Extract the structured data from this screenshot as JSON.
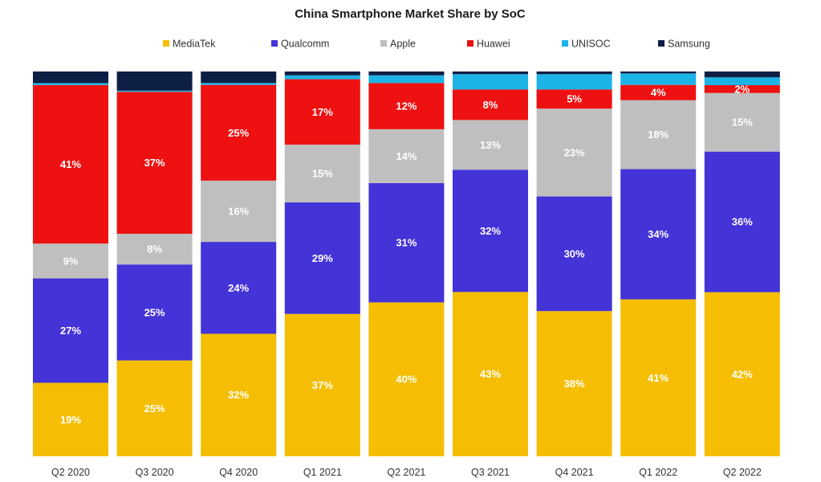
{
  "chart_data": {
    "type": "bar",
    "stacked": true,
    "normalized_percent": true,
    "title": "China Smartphone Market Share by SoC",
    "categories": [
      "Q2 2020",
      "Q3 2020",
      "Q4 2020",
      "Q1 2021",
      "Q2 2021",
      "Q3 2021",
      "Q4 2021",
      "Q1 2022",
      "Q2 2022"
    ],
    "legend_position": "top",
    "grid": false,
    "ylim": [
      0,
      100
    ],
    "series": [
      {
        "name": "MediaTek",
        "color": "#f5be05",
        "values": [
          19,
          25,
          32,
          37,
          40,
          43,
          38,
          41,
          42
        ],
        "labels": [
          "19%",
          "25%",
          "32%",
          "37%",
          "40%",
          "43%",
          "38%",
          "41%",
          "42%"
        ]
      },
      {
        "name": "Qualcomm",
        "color": "#4433d6",
        "values": [
          27,
          25,
          24,
          29,
          31,
          32,
          30,
          34,
          36
        ],
        "labels": [
          "27%",
          "25%",
          "24%",
          "29%",
          "31%",
          "32%",
          "30%",
          "34%",
          "36%"
        ]
      },
      {
        "name": "Apple",
        "color": "#bfbfbf",
        "values": [
          9,
          8,
          16,
          15,
          14,
          13,
          23,
          18,
          15
        ],
        "labels": [
          "9%",
          "8%",
          "16%",
          "15%",
          "14%",
          "13%",
          "23%",
          "18%",
          "15%"
        ]
      },
      {
        "name": "Huawei",
        "color": "#ee1111",
        "values": [
          41,
          37,
          25,
          17,
          12,
          8,
          5,
          4,
          2
        ],
        "labels": [
          "41%",
          "37%",
          "25%",
          "17%",
          "12%",
          "8%",
          "5%",
          "4%",
          "2%"
        ]
      },
      {
        "name": "UNISOC",
        "color": "#1cb3e6",
        "values": [
          0.5,
          0.3,
          0.5,
          1,
          2,
          4,
          4,
          3,
          2
        ],
        "labels": [
          "",
          "",
          "",
          "",
          "",
          "",
          "",
          "",
          ""
        ]
      },
      {
        "name": "Samsung",
        "color": "#0e1f45",
        "values": [
          3,
          5,
          3,
          1,
          1,
          0.7,
          0.7,
          0.5,
          1.5
        ],
        "labels": [
          "",
          "",
          "",
          "",
          "",
          "",
          "",
          "",
          ""
        ]
      }
    ]
  }
}
